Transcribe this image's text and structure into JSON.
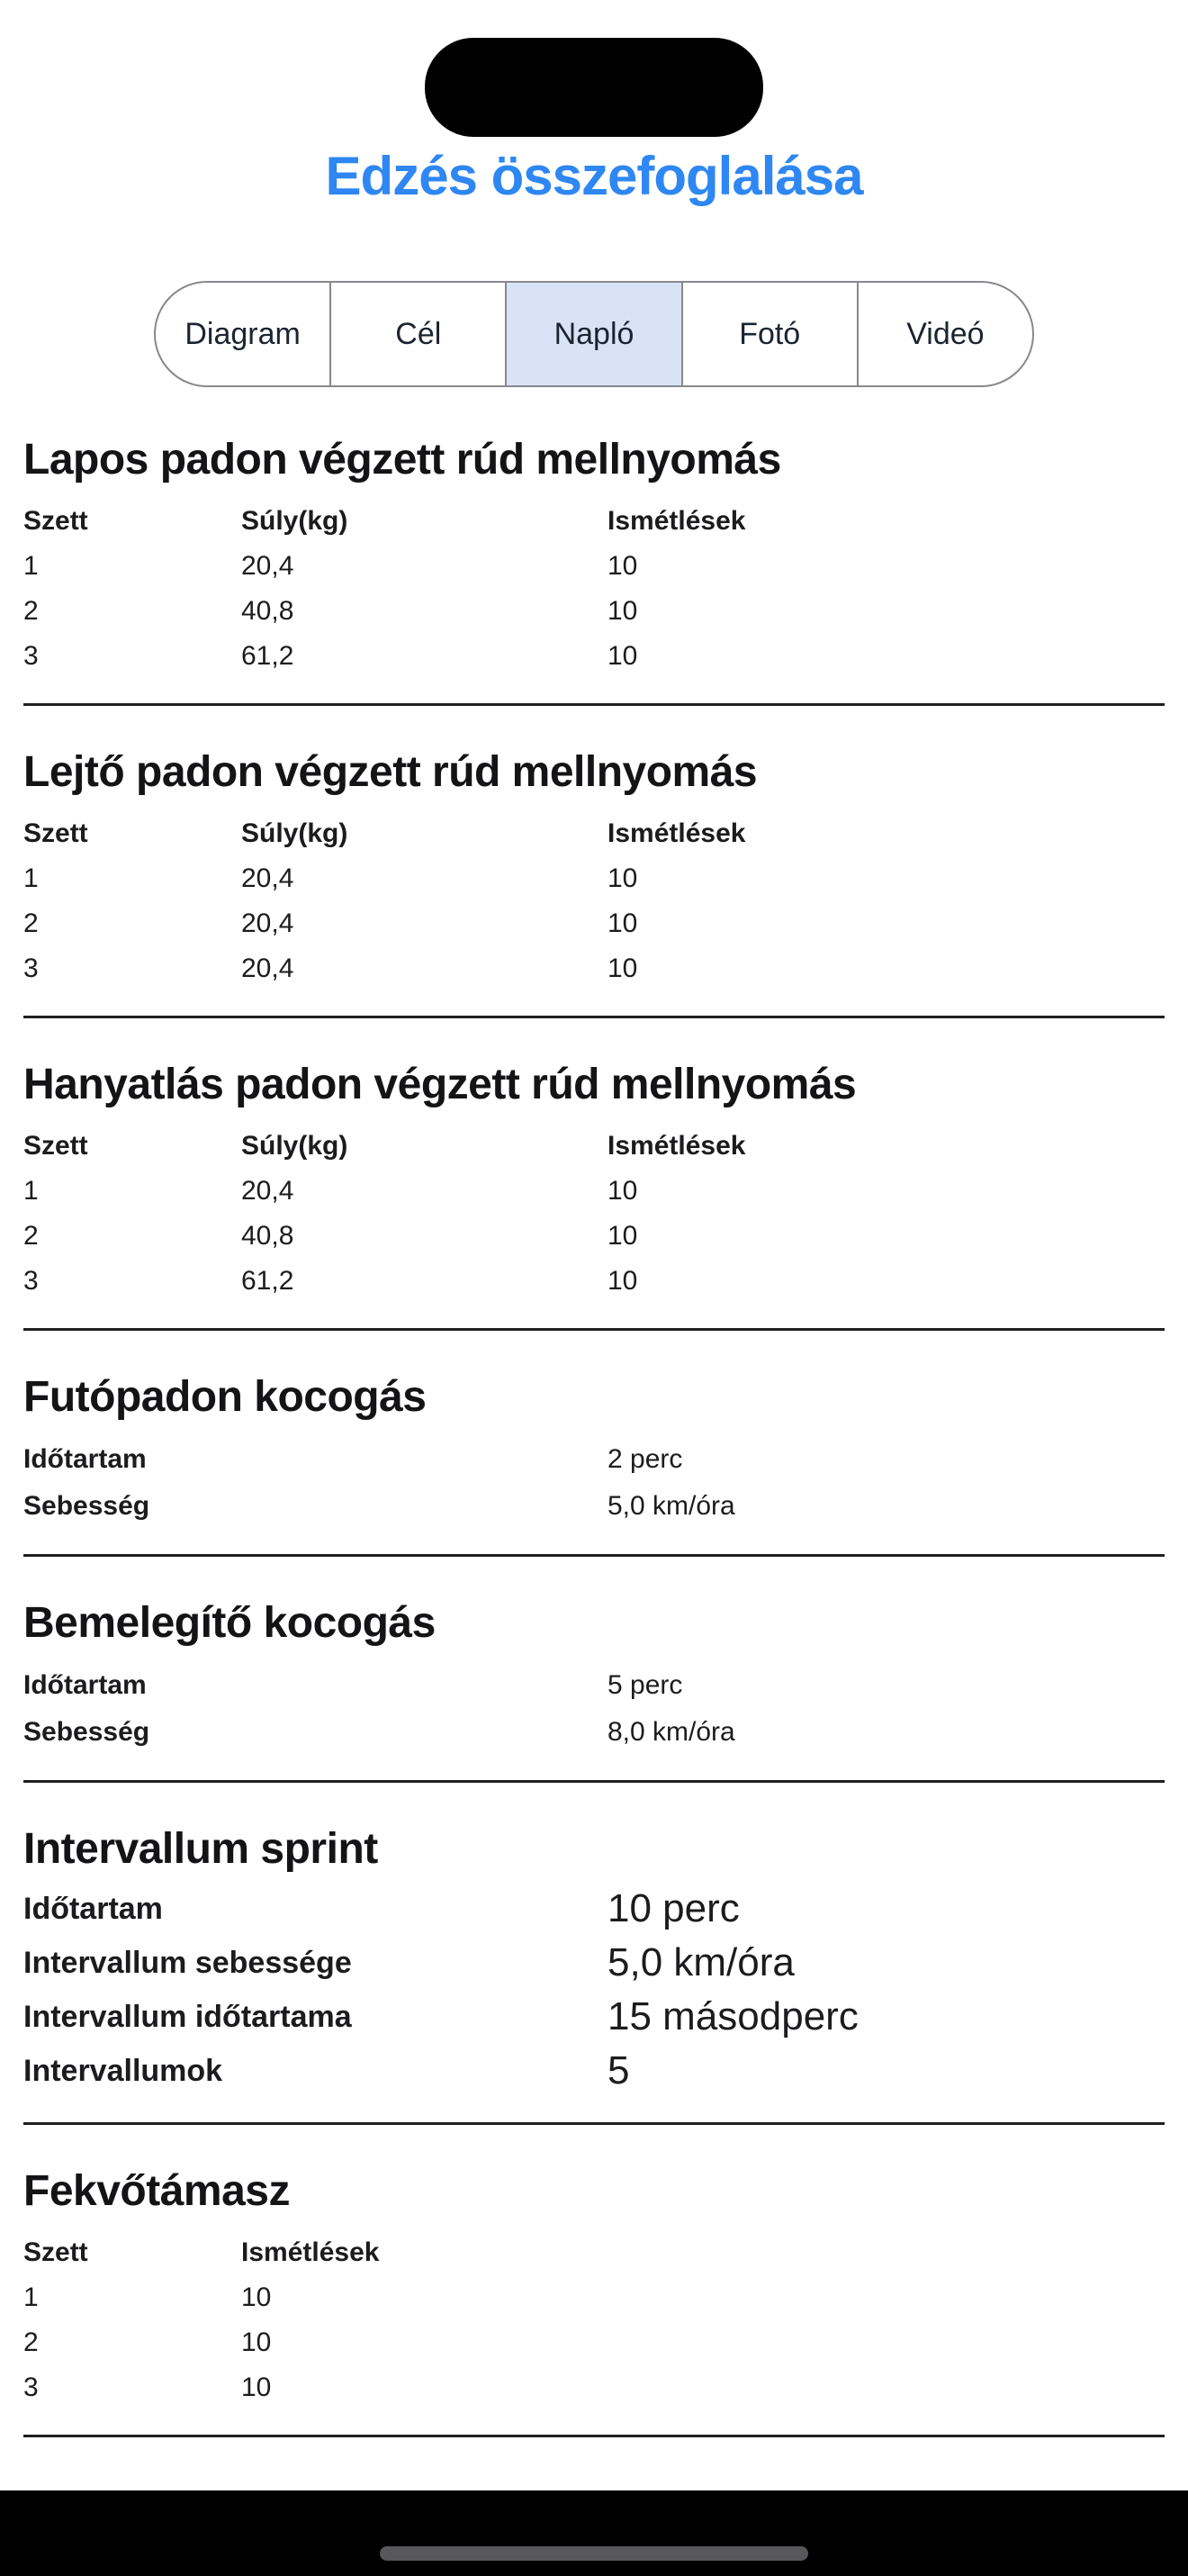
{
  "header": {
    "title": "Edzés összefoglalása",
    "tabs": [
      {
        "id": "diagram",
        "label": "Diagram",
        "selected": false
      },
      {
        "id": "cel",
        "label": "Cél",
        "selected": false
      },
      {
        "id": "naplo",
        "label": "Napló",
        "selected": true
      },
      {
        "id": "foto",
        "label": "Fotó",
        "selected": false
      },
      {
        "id": "video",
        "label": "Videó",
        "selected": false
      }
    ]
  },
  "sections": [
    {
      "type": "table",
      "title": "Lapos padon végzett rúd mellnyomás",
      "columns": [
        "Szett",
        "Súly(kg)",
        "Ismétlések"
      ],
      "rows": [
        [
          "1",
          "20,4",
          "10"
        ],
        [
          "2",
          "40,8",
          "10"
        ],
        [
          "3",
          "61,2",
          "10"
        ]
      ]
    },
    {
      "type": "table",
      "title": "Lejtő padon végzett rúd mellnyomás",
      "columns": [
        "Szett",
        "Súly(kg)",
        "Ismétlések"
      ],
      "rows": [
        [
          "1",
          "20,4",
          "10"
        ],
        [
          "2",
          "20,4",
          "10"
        ],
        [
          "3",
          "20,4",
          "10"
        ]
      ]
    },
    {
      "type": "table",
      "title": "Hanyatlás padon végzett rúd mellnyomás",
      "columns": [
        "Szett",
        "Súly(kg)",
        "Ismétlések"
      ],
      "rows": [
        [
          "1",
          "20,4",
          "10"
        ],
        [
          "2",
          "40,8",
          "10"
        ],
        [
          "3",
          "61,2",
          "10"
        ]
      ]
    },
    {
      "type": "kv",
      "title": "Futópadon kocogás",
      "rows": [
        [
          "Időtartam",
          "2 perc"
        ],
        [
          "Sebesség",
          "5,0 km/óra"
        ]
      ]
    },
    {
      "type": "kv",
      "title": "Bemelegítő kocogás",
      "rows": [
        [
          "Időtartam",
          "5 perc"
        ],
        [
          "Sebesség",
          "8,0 km/óra"
        ]
      ]
    },
    {
      "type": "kv",
      "title": "Intervallum sprint",
      "large": true,
      "rows": [
        [
          "Időtartam",
          "10 perc"
        ],
        [
          "Intervallum sebessége",
          "5,0 km/óra"
        ],
        [
          "Intervallum időtartama",
          "15 másodperc"
        ],
        [
          "Intervallumok",
          "5"
        ]
      ]
    },
    {
      "type": "table",
      "title": "Fekvőtámasz",
      "columns": [
        "Szett",
        "Ismétlések"
      ],
      "rows": [
        [
          "1",
          "10"
        ],
        [
          "2",
          "10"
        ],
        [
          "3",
          "10"
        ]
      ]
    }
  ],
  "colors": {
    "accent": "#2e87f2",
    "tab_selected_bg": "#d9e3f6",
    "tab_border": "#88888d",
    "divider": "#202022",
    "text": "#1c1c1e",
    "home_indicator": "#58585a"
  }
}
